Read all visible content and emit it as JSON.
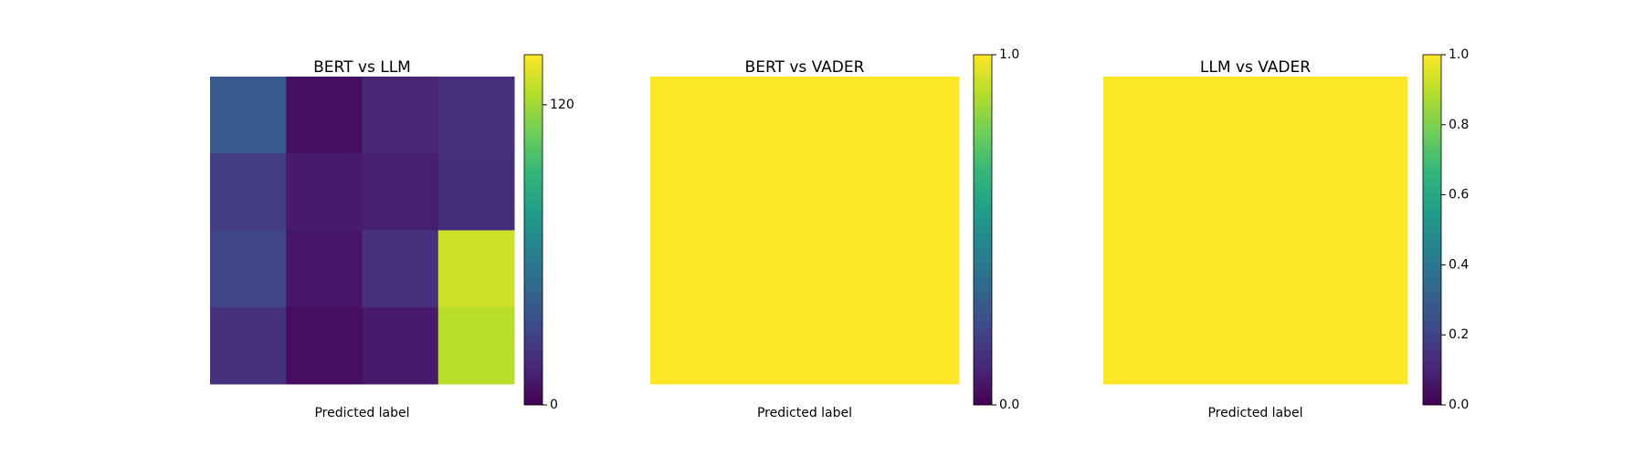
{
  "chart_data": [
    {
      "type": "heatmap",
      "title": "BERT vs LLM",
      "xlabel": "Predicted label",
      "colormap": "viridis",
      "values": [
        [
          40,
          5,
          15,
          20
        ],
        [
          25,
          10,
          12,
          18
        ],
        [
          30,
          8,
          20,
          130
        ],
        [
          20,
          5,
          10,
          125
        ]
      ],
      "clim": [
        0,
        140
      ],
      "cticks": [
        0,
        120
      ]
    },
    {
      "type": "heatmap",
      "title": "BERT vs VADER",
      "xlabel": "Predicted label",
      "colormap": "viridis",
      "values": [
        [
          1,
          1
        ],
        [
          1,
          1
        ]
      ],
      "clim": [
        0,
        1
      ],
      "cticks": [
        {
          "value": 0,
          "label": "0.0"
        },
        {
          "value": 1,
          "label": "1.0"
        }
      ]
    },
    {
      "type": "heatmap",
      "title": "LLM vs VADER",
      "xlabel": "Predicted label",
      "colormap": "viridis",
      "values": [
        [
          1
        ]
      ],
      "clim": [
        0,
        1
      ],
      "cticks": [
        {
          "value": 0,
          "label": "0.0"
        },
        {
          "value": 0.2,
          "label": "0.2"
        },
        {
          "value": 0.4,
          "label": "0.4"
        },
        {
          "value": 0.6,
          "label": "0.6"
        },
        {
          "value": 0.8,
          "label": "0.8"
        },
        {
          "value": 1,
          "label": "1.0"
        }
      ]
    }
  ]
}
